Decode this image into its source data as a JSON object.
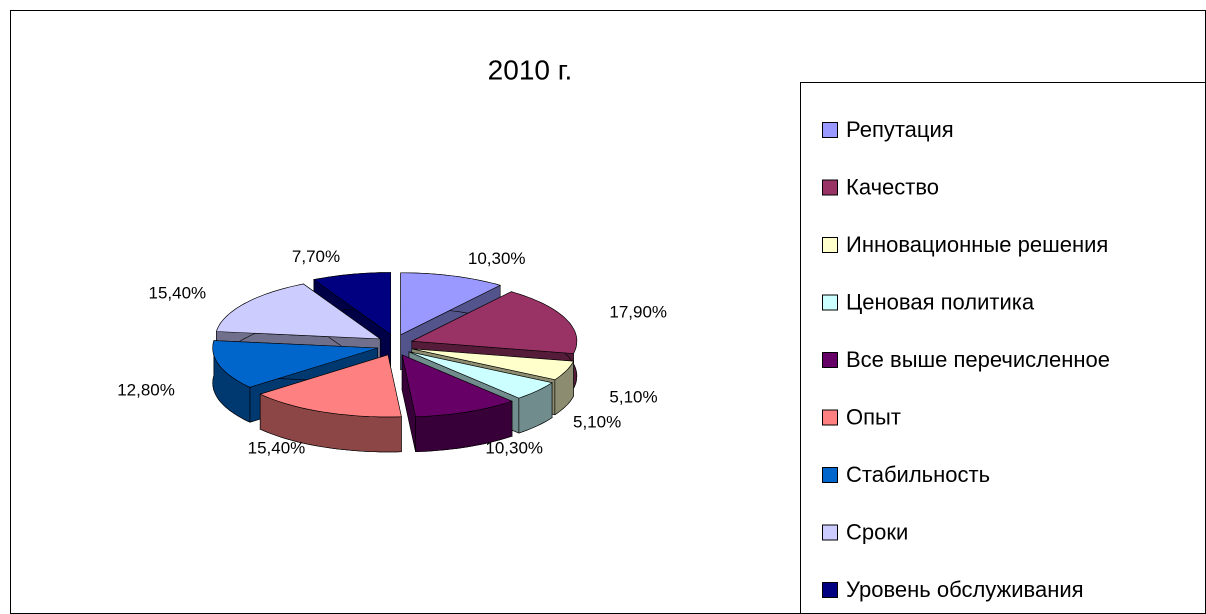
{
  "chart_data": {
    "type": "pie",
    "title": "2010 г.",
    "categories": [
      "Репутация",
      "Качество",
      "Инновационные решения",
      "Ценовая политика",
      "Все выше перечисленное",
      "Опыт",
      "Стабильность",
      "Сроки",
      "Уровень обслуживания"
    ],
    "values": [
      10.3,
      17.9,
      5.1,
      5.1,
      10.3,
      15.4,
      12.8,
      15.4,
      7.7
    ],
    "value_labels": [
      "10,30%",
      "17,90%",
      "5,10%",
      "5,10%",
      "10,30%",
      "15,40%",
      "12,80%",
      "15,40%",
      "7,70%"
    ],
    "colors": [
      "#9999ff",
      "#993366",
      "#ffffcc",
      "#ccffff",
      "#660066",
      "#ff8080",
      "#0066cc",
      "#ccccff",
      "#000080"
    ],
    "legend": "right"
  }
}
